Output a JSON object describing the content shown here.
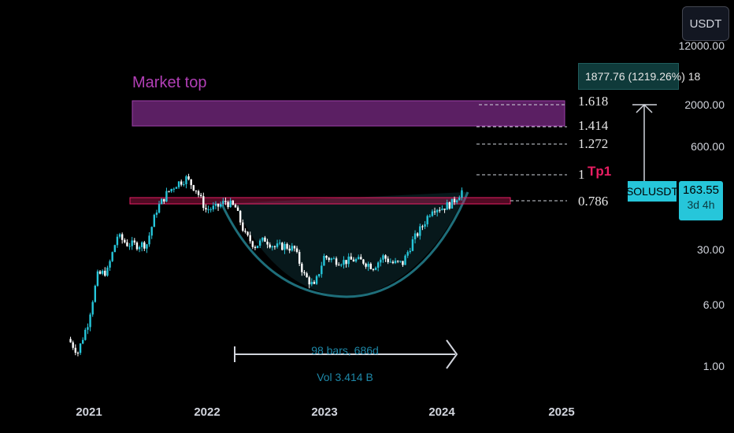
{
  "instrument": {
    "symbol": "SOLUSDT",
    "currency": "USDT",
    "last_price": "163.55",
    "countdown": "3d 4h"
  },
  "price_axis": {
    "scale": "log",
    "labels": [
      "12000.00",
      "2000.00",
      "600.00",
      "30.00",
      "6.00",
      "1.00"
    ]
  },
  "time_axis": {
    "labels": [
      "2021",
      "2022",
      "2023",
      "2024",
      "2025"
    ]
  },
  "annotations": {
    "market_top": "Market top",
    "tp1": "Tp1",
    "measure": "1877.76 (1219.26%) 18",
    "range": "98 bars, 686d",
    "volume": "Vol 3.414 B"
  },
  "fib_levels": [
    "1.618",
    "1.414",
    "1.272",
    "1",
    "0.786"
  ],
  "colors": {
    "background": "#000000",
    "up_candle": "#26c6da",
    "down_candle": "#ffffff",
    "market_top_zone": "#5b1f63",
    "resistance_line": "#e91e63",
    "cup": "#1e6e7a",
    "accent": "#26c6da"
  },
  "chart_data": {
    "type": "candlestick",
    "scale": "log",
    "x_range": [
      "2020-10",
      "2025-02"
    ],
    "y_range": [
      0.8,
      15000
    ],
    "series": [
      {
        "values_date_close": [
          [
            "2020-11",
            2.2
          ],
          [
            "2020-12",
            1.5
          ],
          [
            "2021-01",
            3.5
          ],
          [
            "2021-02",
            14
          ],
          [
            "2021-03",
            16
          ],
          [
            "2021-04",
            44
          ],
          [
            "2021-05",
            35
          ],
          [
            "2021-06",
            34
          ],
          [
            "2021-07",
            35
          ],
          [
            "2021-08",
            95
          ],
          [
            "2021-09",
            150
          ],
          [
            "2021-10",
            200
          ],
          [
            "2021-11",
            235
          ],
          [
            "2021-12",
            170
          ],
          [
            "2022-01",
            95
          ],
          [
            "2022-02",
            100
          ],
          [
            "2022-03",
            120
          ],
          [
            "2022-04",
            100
          ],
          [
            "2022-05",
            45
          ],
          [
            "2022-06",
            33
          ],
          [
            "2022-07",
            40
          ],
          [
            "2022-08",
            32
          ],
          [
            "2022-09",
            33
          ],
          [
            "2022-10",
            30
          ],
          [
            "2022-11",
            14
          ],
          [
            "2022-12",
            10
          ],
          [
            "2023-01",
            24
          ],
          [
            "2023-02",
            22
          ],
          [
            "2023-03",
            21
          ],
          [
            "2023-04",
            22
          ],
          [
            "2023-05",
            21
          ],
          [
            "2023-06",
            18
          ],
          [
            "2023-07",
            24
          ],
          [
            "2023-08",
            20
          ],
          [
            "2023-09",
            20
          ],
          [
            "2023-10",
            38
          ],
          [
            "2023-11",
            59
          ],
          [
            "2023-12",
            100
          ],
          [
            "2024-01",
            100
          ],
          [
            "2024-02",
            115
          ],
          [
            "2024-03",
            163.55
          ]
        ]
      }
    ]
  }
}
